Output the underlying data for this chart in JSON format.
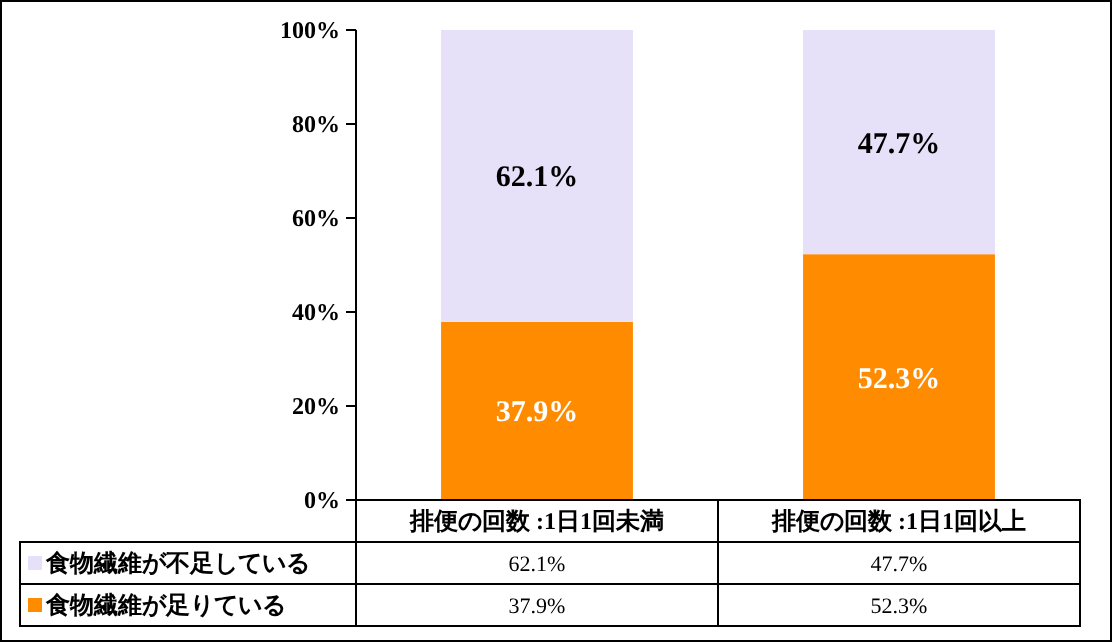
{
  "chart_data": {
    "type": "bar",
    "stacked": true,
    "categories": [
      "排便の回数 :1日1回未満",
      "排便の回数 :1日1回以上"
    ],
    "series": [
      {
        "name": "食物繊維が足りている",
        "color": "#ff8c00",
        "values": [
          37.9,
          52.3
        ],
        "value_labels": [
          "37.9%",
          "52.3%"
        ]
      },
      {
        "name": "食物繊維が不足している",
        "color": "#e6e0f8",
        "values": [
          62.1,
          47.7
        ],
        "value_labels": [
          "62.1%",
          "47.7%"
        ]
      }
    ],
    "ylim": [
      0,
      100
    ],
    "yticks": [
      {
        "value": 0,
        "label": "0%"
      },
      {
        "value": 20,
        "label": "20%"
      },
      {
        "value": 40,
        "label": "40%"
      },
      {
        "value": 60,
        "label": "60%"
      },
      {
        "value": 80,
        "label": "80%"
      },
      {
        "value": 100,
        "label": "100%"
      }
    ],
    "legend": "bottom",
    "grid": false
  }
}
